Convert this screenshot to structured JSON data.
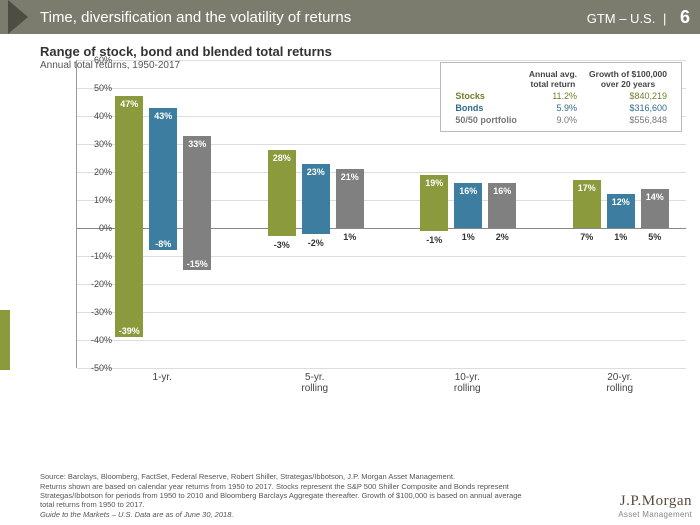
{
  "header": {
    "title": "Time, diversification and the volatility of returns",
    "right": "GTM – U.S.",
    "page": "6"
  },
  "chart": {
    "title": "Range of stock, bond and blended total returns",
    "subtitle": "Annual total returns, 1950-2017",
    "ylim": [
      -50,
      60
    ],
    "ytick_step": 10,
    "yticks": [
      -50,
      -40,
      -30,
      -20,
      -10,
      0,
      10,
      20,
      30,
      40,
      50,
      60
    ],
    "series_colors": {
      "stocks": "#8a9a3c",
      "bonds": "#3d7ea0",
      "blend": "#808080"
    },
    "text_colors": {
      "stocks": "#6f7f2a",
      "bonds": "#2e6a8c",
      "blend": "#666666"
    },
    "groups": [
      {
        "label": "1-yr.",
        "bars": [
          {
            "series": "stocks",
            "hi": 47,
            "lo": -39
          },
          {
            "series": "bonds",
            "hi": 43,
            "lo": -8
          },
          {
            "series": "blend",
            "hi": 33,
            "lo": -15
          }
        ]
      },
      {
        "label": "5-yr.\nrolling",
        "bars": [
          {
            "series": "stocks",
            "hi": 28,
            "lo": -3
          },
          {
            "series": "bonds",
            "hi": 23,
            "lo": -2
          },
          {
            "series": "blend",
            "hi": 21,
            "lo": 1
          }
        ]
      },
      {
        "label": "10-yr.\nrolling",
        "bars": [
          {
            "series": "stocks",
            "hi": 19,
            "lo": -1
          },
          {
            "series": "bonds",
            "hi": 16,
            "lo": 1
          },
          {
            "series": "blend",
            "hi": 16,
            "lo": 2
          }
        ]
      },
      {
        "label": "20-yr.\nrolling",
        "bars": [
          {
            "series": "stocks",
            "hi": 17,
            "lo": 7
          },
          {
            "series": "bonds",
            "hi": 12,
            "lo": 1
          },
          {
            "series": "blend",
            "hi": 14,
            "lo": 5
          }
        ]
      }
    ]
  },
  "legend": {
    "header1": "Annual avg.\ntotal return",
    "header2": "Growth of $100,000\nover 20 years",
    "rows": [
      {
        "label": "Stocks",
        "ret": "11.2%",
        "growth": "$840,219",
        "color": "#6f7f2a"
      },
      {
        "label": "Bonds",
        "ret": "5.9%",
        "growth": "$316,600",
        "color": "#2e6a8c"
      },
      {
        "label": "50/50 portfolio",
        "ret": "9.0%",
        "growth": "$556,848",
        "color": "#777777"
      }
    ]
  },
  "footer": {
    "l1": "Source: Barclays, Bloomberg, FactSet, Federal Reserve, Robert Shiller, Strategas/Ibbotson, J.P. Morgan Asset Management.",
    "l2": "Returns shown are based on calendar year returns from 1950 to 2017. Stocks represent the S&P 500 Shiller Composite and Bonds represent",
    "l3": "Strategas/Ibbotson for periods from 1950 to 2010 and Bloomberg Barclays Aggregate thereafter. Growth of $100,000 is based on annual average",
    "l4": "total returns from 1950 to 2017.",
    "l5": "Guide to the Markets – U.S. Data are as of June 30, 2018."
  },
  "logo": {
    "top": "J.P.Morgan",
    "bottom": "Asset Management"
  }
}
